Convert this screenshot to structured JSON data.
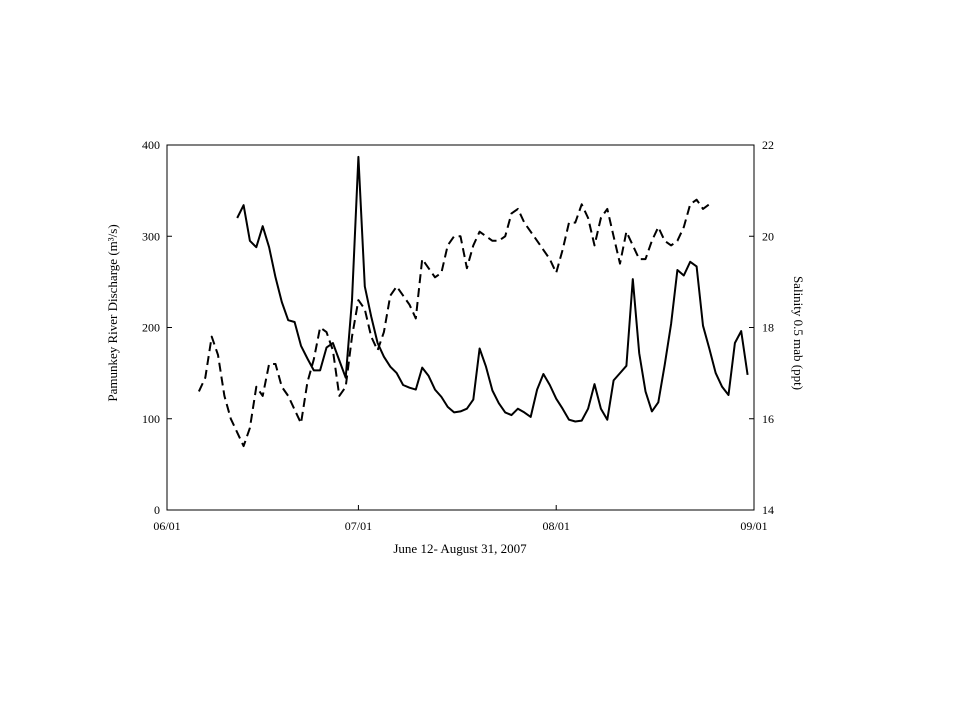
{
  "chart_data": {
    "type": "line",
    "xlabel": "June 12- August 31, 2007",
    "ylabel_left": "Pamunkey River Discharge (m³/s)",
    "ylabel_right": "Salinity 0.5 mab (ppt)",
    "x_ticks": [
      "06/01",
      "07/01",
      "08/01",
      "09/01"
    ],
    "x_tick_days": [
      0,
      30,
      61,
      92
    ],
    "xlim_days": [
      0,
      92
    ],
    "y_left_ticks": [
      "0",
      "100",
      "200",
      "300",
      "400"
    ],
    "y_left_lim": [
      0,
      400
    ],
    "y_right_ticks": [
      "14",
      "16",
      "18",
      "20",
      "22"
    ],
    "y_right_lim": [
      14,
      22
    ],
    "grid": false,
    "series": [
      {
        "axis": "left",
        "style": "solid",
        "points": [
          [
            11,
            320
          ],
          [
            12,
            334
          ],
          [
            13,
            295
          ],
          [
            14,
            288
          ],
          [
            15,
            311
          ],
          [
            16,
            288
          ],
          [
            17,
            255
          ],
          [
            18,
            228
          ],
          [
            19,
            208
          ],
          [
            20,
            206
          ],
          [
            21,
            180
          ],
          [
            22,
            166
          ],
          [
            23,
            153
          ],
          [
            24,
            153
          ],
          [
            25,
            178
          ],
          [
            26,
            183
          ],
          [
            27,
            164
          ],
          [
            28,
            145
          ],
          [
            29,
            230
          ],
          [
            30,
            387
          ],
          [
            31,
            245
          ],
          [
            32,
            212
          ],
          [
            33,
            183
          ],
          [
            34,
            168
          ],
          [
            35,
            157
          ],
          [
            36,
            150
          ],
          [
            37,
            137
          ],
          [
            38,
            134
          ],
          [
            39,
            132
          ],
          [
            40,
            156
          ],
          [
            41,
            147
          ],
          [
            42,
            132
          ],
          [
            43,
            124
          ],
          [
            44,
            113
          ],
          [
            45,
            107
          ],
          [
            46,
            108
          ],
          [
            47,
            111
          ],
          [
            48,
            121
          ],
          [
            49,
            177
          ],
          [
            50,
            157
          ],
          [
            51,
            131
          ],
          [
            52,
            117
          ],
          [
            53,
            107
          ],
          [
            54,
            104
          ],
          [
            55,
            111
          ],
          [
            56,
            107
          ],
          [
            57,
            102
          ],
          [
            58,
            132
          ],
          [
            59,
            149
          ],
          [
            60,
            137
          ],
          [
            61,
            122
          ],
          [
            62,
            111
          ],
          [
            63,
            99
          ],
          [
            64,
            97
          ],
          [
            65,
            98
          ],
          [
            66,
            111
          ],
          [
            67,
            138
          ],
          [
            68,
            111
          ],
          [
            69,
            99
          ],
          [
            70,
            142
          ],
          [
            71,
            150
          ],
          [
            72,
            158
          ],
          [
            73,
            253
          ],
          [
            74,
            172
          ],
          [
            75,
            130
          ],
          [
            76,
            108
          ],
          [
            77,
            118
          ],
          [
            78,
            159
          ],
          [
            79,
            204
          ],
          [
            80,
            263
          ],
          [
            81,
            257
          ],
          [
            82,
            272
          ],
          [
            83,
            267
          ],
          [
            84,
            202
          ],
          [
            85,
            177
          ],
          [
            86,
            150
          ],
          [
            87,
            135
          ],
          [
            88,
            126
          ],
          [
            89,
            183
          ],
          [
            90,
            196
          ],
          [
            91,
            148
          ]
        ]
      },
      {
        "axis": "right",
        "style": "dashed",
        "points": [
          [
            5,
            16.6
          ],
          [
            6,
            16.9
          ],
          [
            7,
            17.8
          ],
          [
            8,
            17.4
          ],
          [
            9,
            16.5
          ],
          [
            10,
            16.0
          ],
          [
            11,
            15.7
          ],
          [
            12,
            15.4
          ],
          [
            13,
            15.8
          ],
          [
            14,
            16.7
          ],
          [
            15,
            16.5
          ],
          [
            16,
            17.2
          ],
          [
            17,
            17.2
          ],
          [
            18,
            16.7
          ],
          [
            19,
            16.5
          ],
          [
            20,
            16.2
          ],
          [
            21,
            15.9
          ],
          [
            22,
            16.8
          ],
          [
            23,
            17.3
          ],
          [
            24,
            18.0
          ],
          [
            25,
            17.9
          ],
          [
            26,
            17.5
          ],
          [
            27,
            16.5
          ],
          [
            28,
            16.7
          ],
          [
            29,
            17.8
          ],
          [
            30,
            18.6
          ],
          [
            31,
            18.4
          ],
          [
            32,
            17.8
          ],
          [
            33,
            17.5
          ],
          [
            34,
            17.9
          ],
          [
            35,
            18.7
          ],
          [
            36,
            18.9
          ],
          [
            37,
            18.7
          ],
          [
            38,
            18.5
          ],
          [
            39,
            18.2
          ],
          [
            40,
            19.5
          ],
          [
            41,
            19.3
          ],
          [
            42,
            19.1
          ],
          [
            43,
            19.2
          ],
          [
            44,
            19.8
          ],
          [
            45,
            20.0
          ],
          [
            46,
            20.0
          ],
          [
            47,
            19.3
          ],
          [
            48,
            19.8
          ],
          [
            49,
            20.1
          ],
          [
            50,
            20.0
          ],
          [
            51,
            19.9
          ],
          [
            52,
            19.9
          ],
          [
            53,
            20.0
          ],
          [
            54,
            20.5
          ],
          [
            55,
            20.6
          ],
          [
            56,
            20.3
          ],
          [
            57,
            20.1
          ],
          [
            58,
            19.9
          ],
          [
            59,
            19.7
          ],
          [
            60,
            19.5
          ],
          [
            61,
            19.2
          ],
          [
            62,
            19.7
          ],
          [
            63,
            20.3
          ],
          [
            64,
            20.3
          ],
          [
            65,
            20.7
          ],
          [
            66,
            20.4
          ],
          [
            67,
            19.8
          ],
          [
            68,
            20.4
          ],
          [
            69,
            20.6
          ],
          [
            70,
            20.0
          ],
          [
            71,
            19.4
          ],
          [
            72,
            20.1
          ],
          [
            73,
            19.8
          ],
          [
            74,
            19.5
          ],
          [
            75,
            19.5
          ],
          [
            76,
            19.9
          ],
          [
            77,
            20.2
          ],
          [
            78,
            19.9
          ],
          [
            79,
            19.8
          ],
          [
            80,
            19.9
          ],
          [
            81,
            20.2
          ],
          [
            82,
            20.7
          ],
          [
            83,
            20.8
          ],
          [
            84,
            20.6
          ],
          [
            85,
            20.7
          ]
        ]
      }
    ]
  }
}
